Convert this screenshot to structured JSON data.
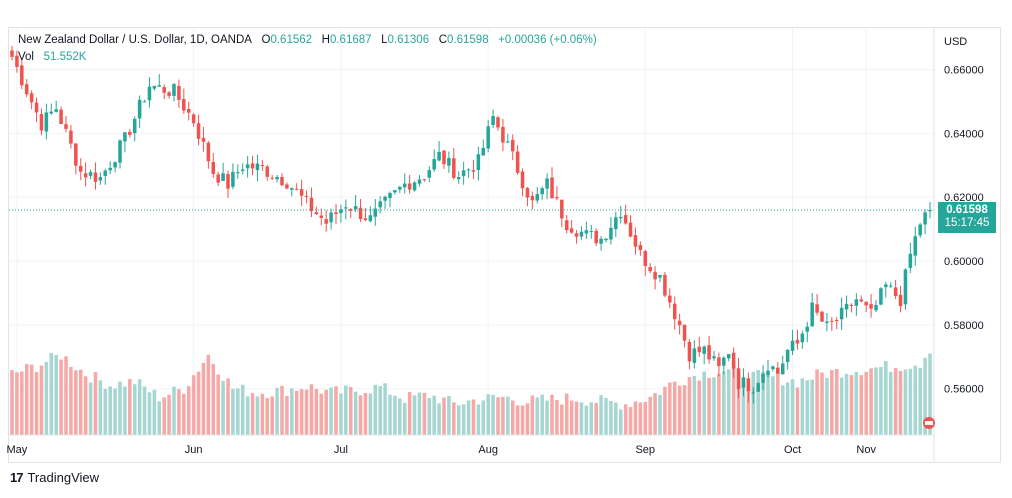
{
  "legend": {
    "symbol": "New Zealand Dollar / U.S. Dollar, 1D, OANDA",
    "o_label": "O",
    "o_val": "0.61562",
    "h_label": "H",
    "h_val": "0.61687",
    "l_label": "L",
    "l_val": "0.61306",
    "c_label": "C",
    "c_val": "0.61598",
    "change": "+0.00036 (+0.06%)",
    "vol_label": "Vol",
    "vol_val": "51.552K"
  },
  "currency": "USD",
  "price_tag": {
    "price": "0.61598",
    "timer": "15:17:45"
  },
  "footer": {
    "logo_text": "17",
    "brand": "TradingView"
  },
  "colors": {
    "up": "#26a69a",
    "down": "#ef5350",
    "vol_up": "#a5d6d1",
    "vol_down": "#f5a8a5",
    "grid": "#f0f3fa"
  },
  "chart_data": {
    "type": "candlestick",
    "title": "New Zealand Dollar / U.S. Dollar, 1D, OANDA",
    "y_ticks": [
      "0.66000",
      "0.64000",
      "0.62000",
      "0.60000",
      "0.58000",
      "0.56000"
    ],
    "x_ticks": [
      "May",
      "Jun",
      "Jul",
      "Aug",
      "Sep",
      "Oct",
      "Nov"
    ],
    "ylim": [
      0.5455,
      0.673
    ],
    "last_close": 0.61598,
    "close_anchors": [
      [
        0,
        0.664
      ],
      [
        6,
        0.643
      ],
      [
        9,
        0.648
      ],
      [
        14,
        0.628
      ],
      [
        18,
        0.626
      ],
      [
        23,
        0.638
      ],
      [
        28,
        0.655
      ],
      [
        33,
        0.653
      ],
      [
        37,
        0.644
      ],
      [
        41,
        0.628
      ],
      [
        44,
        0.624
      ],
      [
        47,
        0.63
      ],
      [
        51,
        0.629
      ],
      [
        56,
        0.625
      ],
      [
        60,
        0.618
      ],
      [
        64,
        0.612
      ],
      [
        68,
        0.618
      ],
      [
        73,
        0.613
      ],
      [
        76,
        0.618
      ],
      [
        80,
        0.624
      ],
      [
        84,
        0.627
      ],
      [
        87,
        0.633
      ],
      [
        91,
        0.627
      ],
      [
        95,
        0.631
      ],
      [
        98,
        0.645
      ],
      [
        101,
        0.636
      ],
      [
        106,
        0.618
      ],
      [
        109,
        0.624
      ],
      [
        113,
        0.612
      ],
      [
        117,
        0.608
      ],
      [
        120,
        0.607
      ],
      [
        124,
        0.616
      ],
      [
        128,
        0.602
      ],
      [
        132,
        0.595
      ],
      [
        136,
        0.58
      ],
      [
        138,
        0.571
      ],
      [
        141,
        0.572
      ],
      [
        144,
        0.566
      ],
      [
        146,
        0.572
      ],
      [
        148,
        0.562
      ],
      [
        151,
        0.561
      ],
      [
        154,
        0.568
      ],
      [
        156,
        0.565
      ],
      [
        158,
        0.572
      ],
      [
        160,
        0.574
      ],
      [
        163,
        0.585
      ],
      [
        166,
        0.579
      ],
      [
        169,
        0.583
      ],
      [
        172,
        0.588
      ],
      [
        175,
        0.583
      ],
      [
        178,
        0.592
      ],
      [
        181,
        0.588
      ],
      [
        183,
        0.602
      ],
      [
        185,
        0.612
      ],
      [
        187,
        0.616
      ]
    ],
    "volume_anchors": [
      [
        0,
        0.55
      ],
      [
        5,
        0.62
      ],
      [
        10,
        0.72
      ],
      [
        15,
        0.55
      ],
      [
        20,
        0.45
      ],
      [
        25,
        0.48
      ],
      [
        30,
        0.34
      ],
      [
        35,
        0.42
      ],
      [
        40,
        0.72
      ],
      [
        45,
        0.42
      ],
      [
        50,
        0.38
      ],
      [
        55,
        0.4
      ],
      [
        60,
        0.44
      ],
      [
        65,
        0.38
      ],
      [
        70,
        0.4
      ],
      [
        75,
        0.43
      ],
      [
        80,
        0.33
      ],
      [
        85,
        0.36
      ],
      [
        90,
        0.28
      ],
      [
        95,
        0.32
      ],
      [
        100,
        0.34
      ],
      [
        105,
        0.3
      ],
      [
        110,
        0.32
      ],
      [
        115,
        0.33
      ],
      [
        120,
        0.3
      ],
      [
        125,
        0.28
      ],
      [
        130,
        0.34
      ],
      [
        135,
        0.48
      ],
      [
        140,
        0.55
      ],
      [
        145,
        0.58
      ],
      [
        150,
        0.53
      ],
      [
        155,
        0.52
      ],
      [
        160,
        0.48
      ],
      [
        165,
        0.55
      ],
      [
        170,
        0.58
      ],
      [
        175,
        0.6
      ],
      [
        180,
        0.62
      ],
      [
        185,
        0.65
      ],
      [
        187,
        0.78
      ]
    ]
  }
}
